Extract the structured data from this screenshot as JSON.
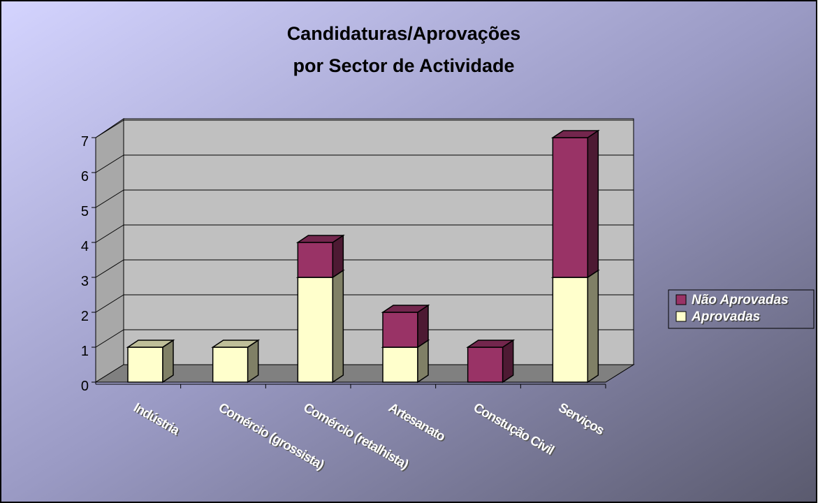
{
  "chart_data": {
    "type": "bar3d_stacked",
    "title": [
      "Candidaturas/Aprovações",
      "por Sector de Actividade"
    ],
    "categories": [
      "Indústria",
      "Comércio (grossista)",
      "Comércio (retalhista)",
      "Artesanato",
      "Constução Civil",
      "Serviços"
    ],
    "series": [
      {
        "name": "Aprovadas",
        "color": "#ffffcc",
        "values": [
          1,
          1,
          3,
          1,
          0,
          3
        ]
      },
      {
        "name": "Não Aprovadas",
        "color": "#993366",
        "values": [
          0,
          0,
          1,
          1,
          1,
          4
        ]
      }
    ],
    "ylim": [
      0,
      7
    ],
    "yticks": [
      0,
      1,
      2,
      3,
      4,
      5,
      6,
      7
    ],
    "grid": true,
    "legend": "right"
  }
}
